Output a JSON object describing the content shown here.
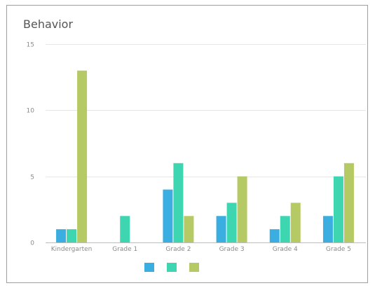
{
  "chart_data": {
    "type": "bar",
    "title": "Behavior",
    "xlabel": "",
    "ylabel": "",
    "categories": [
      "Kindergarten",
      "Grade 1",
      "Grade 2",
      "Grade 3",
      "Grade 4",
      "Grade 5"
    ],
    "series": [
      {
        "color": "#3aaee0",
        "values": [
          1,
          0,
          4,
          2,
          1,
          2
        ]
      },
      {
        "color": "#3dd6b0",
        "values": [
          1,
          2,
          6,
          3,
          2,
          5
        ]
      },
      {
        "color": "#b5c964",
        "values": [
          13,
          0,
          2,
          5,
          3,
          6
        ]
      }
    ],
    "ylim": [
      0,
      15
    ],
    "yticks": [
      "0",
      "5",
      "10",
      "15"
    ],
    "grid": true,
    "legend": "bottom"
  }
}
